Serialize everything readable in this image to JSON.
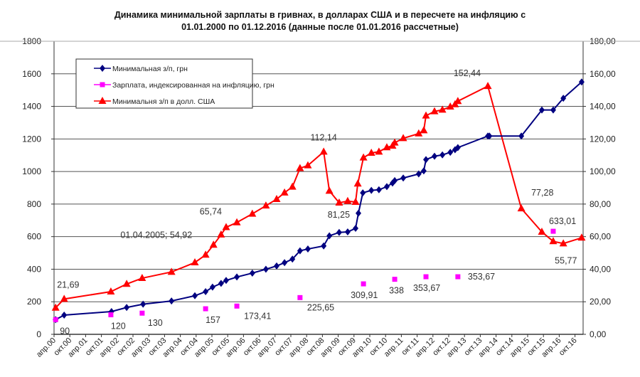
{
  "chart_data": {
    "type": "line",
    "title_line1": "Динамика  минимальной  зарплаты  в гривнах,  в долларах США  и в пересчете на инфляцию с",
    "title_line2": "01.01.2000  по 01.12.2016  (данные после 01.01.2016  рассчетные)",
    "x_ticks": [
      "апр.00",
      "окт.00",
      "апр.01",
      "окт.01",
      "апр.02",
      "окт.02",
      "апр.03",
      "окт.03",
      "апр.04",
      "окт.04",
      "апр.05",
      "окт.05",
      "апр.06",
      "окт.06",
      "апр.07",
      "окт.07",
      "апр.08",
      "окт.08",
      "апр.09",
      "окт.09",
      "апр.10",
      "окт.10",
      "апр.11",
      "окт.11",
      "апр.12",
      "окт.12",
      "апр.13",
      "окт.13",
      "апр.14",
      "окт.14",
      "апр.15",
      "окт.15",
      "апр.16",
      "окт.16"
    ],
    "x_range_years": [
      2000.25,
      2016.92
    ],
    "y_left": {
      "range": [
        0,
        1800
      ],
      "ticks": [
        "0",
        "200",
        "400",
        "600",
        "800",
        "1000",
        "1200",
        "1400",
        "1600",
        "1800"
      ]
    },
    "y_right": {
      "range": [
        0,
        180
      ],
      "ticks": [
        "0,00",
        "20,00",
        "40,00",
        "60,00",
        "80,00",
        "100,00",
        "120,00",
        "140,00",
        "160,00",
        "180,00"
      ]
    },
    "grid": true,
    "legend_position": "top-left",
    "series": [
      {
        "name": "Минимальная з/п, грн",
        "axis": "left",
        "color": "#000080",
        "marker": "diamond",
        "x": [
          2000.3,
          2000.57,
          2002.07,
          2002.55,
          2003.07,
          2003.97,
          2004.71,
          2005.05,
          2005.27,
          2005.54,
          2005.7,
          2006.04,
          2006.53,
          2006.96,
          2007.3,
          2007.55,
          2007.8,
          2008.04,
          2008.29,
          2008.79,
          2008.97,
          2009.28,
          2009.55,
          2009.8,
          2009.89,
          2010.03,
          2010.3,
          2010.54,
          2010.79,
          2010.97,
          2011.04,
          2011.31,
          2011.8,
          2011.96,
          2012.03,
          2012.3,
          2012.55,
          2012.8,
          2012.95,
          2013.04,
          2013.99,
          2014.04,
          2015.05,
          2015.7,
          2016.06,
          2016.38,
          2016.96
        ],
        "y": [
          90,
          118,
          140,
          165,
          185,
          205,
          237,
          262,
          290,
          313,
          331,
          352,
          376,
          400,
          420,
          440,
          462,
          513,
          524,
          543,
          605,
          626,
          629,
          651,
          744,
          869,
          884,
          888,
          907,
          929,
          944,
          960,
          985,
          1004,
          1073,
          1094,
          1102,
          1118,
          1134,
          1147,
          1218,
          1218,
          1218,
          1378,
          1378,
          1450,
          1550
        ]
      },
      {
        "name": "Зарплата, индексированная на инфляцию, грн",
        "axis": "left",
        "color": "#ff00ff",
        "marker": "square",
        "x": [
          2000.3,
          2002.05,
          2003.04,
          2005.05,
          2006.04,
          2008.04,
          2010.05,
          2011.04,
          2012.03,
          2013.04,
          2016.06
        ],
        "y": [
          90,
          120,
          130,
          157,
          173.41,
          225.65,
          309.91,
          338,
          353.67,
          353.67,
          633.01
        ],
        "labels": [
          "90",
          "120",
          "130",
          "157",
          "173,41",
          "225,65",
          "309,91",
          "338",
          "353,67",
          "353,67",
          "633,01"
        ]
      },
      {
        "name": "Минимальня з/п в долл. США",
        "axis": "right",
        "color": "#ff0000",
        "marker": "triangle",
        "x": [
          2000.3,
          2000.57,
          2002.05,
          2002.55,
          2003.04,
          2003.97,
          2004.71,
          2005.05,
          2005.3,
          2005.54,
          2005.7,
          2006.04,
          2006.53,
          2006.96,
          2007.3,
          2007.55,
          2007.8,
          2008.04,
          2008.29,
          2008.79,
          2008.97,
          2009.28,
          2009.55,
          2009.8,
          2009.87,
          2010.05,
          2010.3,
          2010.54,
          2010.79,
          2010.97,
          2011.04,
          2011.31,
          2011.8,
          2011.96,
          2012.03,
          2012.3,
          2012.55,
          2012.8,
          2012.95,
          2013.04,
          2013.99,
          2015.05,
          2015.7,
          2016.06,
          2016.38,
          2016.96
        ],
        "y": [
          16.3,
          21.69,
          26.2,
          30.9,
          34.5,
          38.3,
          44.1,
          48.8,
          54.92,
          61.2,
          65.74,
          68.7,
          74,
          79,
          83,
          87,
          90.6,
          102,
          103.7,
          112.14,
          88.1,
          80.8,
          81.8,
          81.25,
          92.5,
          108.5,
          111.4,
          112.1,
          114.8,
          115.8,
          117.7,
          120.4,
          123.3,
          125.2,
          134.3,
          136.9,
          137.9,
          139.8,
          141.2,
          143.2,
          152.44,
          77.28,
          62.9,
          57.1,
          55.77,
          59.3
        ],
        "annotations": [
          {
            "i": 1,
            "text": "21,69"
          },
          {
            "i": 8,
            "text": "01.04.2005; 54,92"
          },
          {
            "i": 10,
            "text": "65,74"
          },
          {
            "i": 19,
            "text": "112,14"
          },
          {
            "i": 23,
            "text": "81,25"
          },
          {
            "i": 40,
            "text": "152,44"
          },
          {
            "i": 41,
            "text": "77,28"
          },
          {
            "i": 44,
            "text": "55,77"
          }
        ]
      }
    ]
  }
}
